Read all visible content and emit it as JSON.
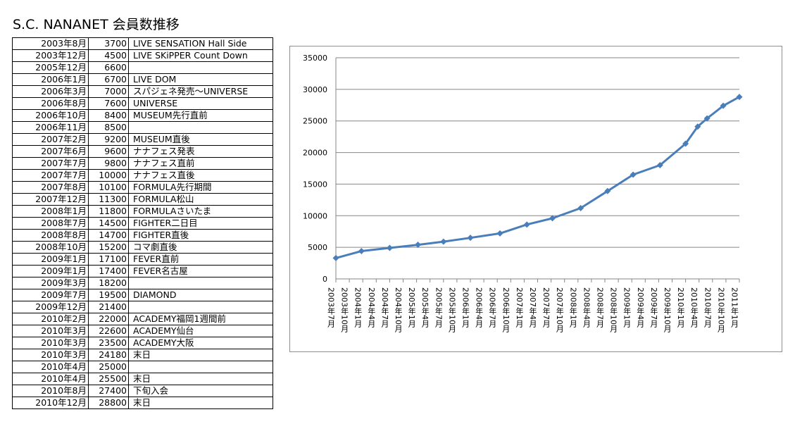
{
  "title": "S.C. NANANET 会員数推移",
  "table": {
    "rows": [
      {
        "date": "2003年8月",
        "members": "3700",
        "note": "LIVE SENSATION Hall Side"
      },
      {
        "date": "2003年12月",
        "members": "4500",
        "note": "LIVE SKiPPER Count Down"
      },
      {
        "date": "2005年12月",
        "members": "6600",
        "note": ""
      },
      {
        "date": "2006年1月",
        "members": "6700",
        "note": "LIVE DOM"
      },
      {
        "date": "2006年3月",
        "members": "7000",
        "note": "スパジェネ発売～UNIVERSE"
      },
      {
        "date": "2006年8月",
        "members": "7600",
        "note": "UNIVERSE"
      },
      {
        "date": "2006年10月",
        "members": "8400",
        "note": "MUSEUM先行直前"
      },
      {
        "date": "2006年11月",
        "members": "8500",
        "note": ""
      },
      {
        "date": "2007年2月",
        "members": "9200",
        "note": "MUSEUM直後"
      },
      {
        "date": "2007年6月",
        "members": "9600",
        "note": "ナナフェス発表"
      },
      {
        "date": "2007年7月",
        "members": "9800",
        "note": "ナナフェス直前"
      },
      {
        "date": "2007年7月",
        "members": "10000",
        "note": "ナナフェス直後"
      },
      {
        "date": "2007年8月",
        "members": "10100",
        "note": "FORMULA先行期間"
      },
      {
        "date": "2007年12月",
        "members": "11300",
        "note": "FORMULA松山"
      },
      {
        "date": "2008年1月",
        "members": "11800",
        "note": "FORMULAさいたま"
      },
      {
        "date": "2008年7月",
        "members": "14500",
        "note": "FIGHTER二日目"
      },
      {
        "date": "2008年8月",
        "members": "14700",
        "note": "FIGHTER直後"
      },
      {
        "date": "2008年10月",
        "members": "15200",
        "note": "コマ劇直後"
      },
      {
        "date": "2009年1月",
        "members": "17100",
        "note": "FEVER直前"
      },
      {
        "date": "2009年1月",
        "members": "17400",
        "note": "FEVER名古屋"
      },
      {
        "date": "2009年3月",
        "members": "18200",
        "note": ""
      },
      {
        "date": "2009年7月",
        "members": "19500",
        "note": "DIAMOND"
      },
      {
        "date": "2009年12月",
        "members": "21400",
        "note": ""
      },
      {
        "date": "2010年2月",
        "members": "22000",
        "note": "ACADEMY福岡1週間前"
      },
      {
        "date": "2010年3月",
        "members": "22600",
        "note": "ACADEMY仙台"
      },
      {
        "date": "2010年3月",
        "members": "23500",
        "note": "ACADEMY大阪"
      },
      {
        "date": "2010年3月",
        "members": "24180",
        "note": "末日"
      },
      {
        "date": "2010年4月",
        "members": "25000",
        "note": ""
      },
      {
        "date": "2010年4月",
        "members": "25500",
        "note": "末日"
      },
      {
        "date": "2010年8月",
        "members": "27400",
        "note": "下旬入会"
      },
      {
        "date": "2010年12月",
        "members": "28800",
        "note": "末日"
      }
    ]
  },
  "chart_data": {
    "type": "line",
    "title": "",
    "xlabel": "",
    "ylabel": "",
    "ylim": [
      0,
      35000
    ],
    "yticks": [
      0,
      5000,
      10000,
      15000,
      20000,
      25000,
      30000,
      35000
    ],
    "grid": true,
    "legend": "none",
    "categories": [
      "2003年7月",
      "2003年10月",
      "2004年1月",
      "2004年4月",
      "2004年7月",
      "2004年10月",
      "2005年1月",
      "2005年4月",
      "2005年7月",
      "2005年10月",
      "2006年1月",
      "2006年4月",
      "2006年7月",
      "2006年10月",
      "2007年1月",
      "2007年4月",
      "2007年7月",
      "2007年10月",
      "2008年1月",
      "2008年4月",
      "2008年7月",
      "2008年10月",
      "2009年1月",
      "2009年4月",
      "2009年7月",
      "2009年10月",
      "2010年1月",
      "2010年4月",
      "2010年7月",
      "2010年10月",
      "2011年1月"
    ],
    "series": [
      {
        "name": "",
        "color": "#4a7ebb",
        "points": [
          {
            "index": 0,
            "value": 3300
          },
          {
            "index": 1.9,
            "value": 4400
          },
          {
            "index": 4.0,
            "value": 4900
          },
          {
            "index": 6.1,
            "value": 5400
          },
          {
            "index": 8.0,
            "value": 5900
          },
          {
            "index": 10.0,
            "value": 6500
          },
          {
            "index": 12.2,
            "value": 7200
          },
          {
            "index": 14.2,
            "value": 8600
          },
          {
            "index": 16.1,
            "value": 9600
          },
          {
            "index": 18.2,
            "value": 11200
          },
          {
            "index": 20.2,
            "value": 13900
          },
          {
            "index": 22.1,
            "value": 16500
          },
          {
            "index": 24.1,
            "value": 18000
          },
          {
            "index": 26.0,
            "value": 21400
          },
          {
            "index": 26.9,
            "value": 24100
          },
          {
            "index": 27.6,
            "value": 25400
          },
          {
            "index": 28.8,
            "value": 27400
          },
          {
            "index": 30.0,
            "value": 28800
          }
        ]
      }
    ],
    "accent_color": "#4a7ebb",
    "grid_color": "#868686"
  }
}
